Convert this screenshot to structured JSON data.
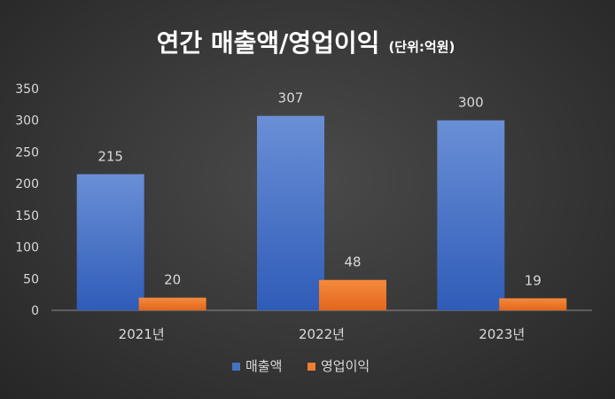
{
  "chart_data": {
    "type": "bar",
    "title": "연간 매출액/영업이익",
    "subtitle": "(단위:억원)",
    "categories": [
      "2021년",
      "2022년",
      "2023년"
    ],
    "series": [
      {
        "name": "매출액",
        "values": [
          215,
          307,
          300
        ],
        "color": "#4472c4"
      },
      {
        "name": "영업이익",
        "values": [
          20,
          48,
          19
        ],
        "color": "#ed7d31"
      }
    ],
    "ylim": [
      0,
      350
    ],
    "yticks": [
      "0",
      "50",
      "100",
      "150",
      "200",
      "250",
      "300",
      "350"
    ],
    "grid": false,
    "legend": "bottom"
  }
}
